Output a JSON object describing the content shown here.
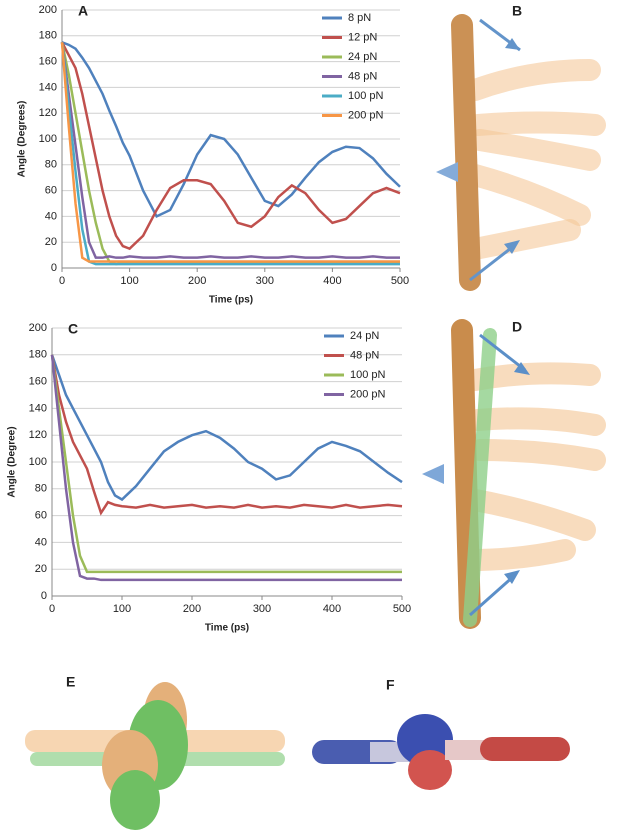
{
  "chart_data": [
    {
      "type": "line",
      "label": "A",
      "xlabel": "Time (ps)",
      "ylabel": "Angle (Degrees)",
      "x": [
        0,
        10,
        20,
        30,
        40,
        50,
        60,
        70,
        80,
        90,
        100,
        120,
        140,
        160,
        180,
        200,
        220,
        240,
        260,
        280,
        300,
        320,
        340,
        360,
        380,
        400,
        420,
        440,
        460,
        480,
        500
      ],
      "xlim": [
        0,
        500
      ],
      "xticks": [
        0,
        100,
        200,
        300,
        400,
        500
      ],
      "ylim": [
        0,
        200
      ],
      "yticks": [
        0,
        20,
        40,
        60,
        80,
        100,
        120,
        140,
        160,
        180,
        200
      ],
      "grid": true,
      "legend": "upper right",
      "series": [
        {
          "name": "8 pN",
          "color": "#4f81bd",
          "values": [
            175,
            173,
            170,
            163,
            155,
            145,
            135,
            122,
            110,
            97,
            87,
            60,
            40,
            45,
            65,
            88,
            103,
            100,
            88,
            70,
            52,
            48,
            57,
            70,
            82,
            90,
            94,
            93,
            85,
            73,
            63
          ]
        },
        {
          "name": "12 pN",
          "color": "#c0504d",
          "values": [
            175,
            165,
            155,
            135,
            110,
            85,
            60,
            40,
            25,
            17,
            15,
            25,
            45,
            62,
            68,
            68,
            65,
            52,
            35,
            32,
            40,
            55,
            64,
            58,
            45,
            35,
            38,
            48,
            58,
            62,
            58
          ]
        },
        {
          "name": "24 pN",
          "color": "#9bbb59",
          "values": [
            175,
            150,
            120,
            90,
            60,
            35,
            15,
            5,
            3,
            4,
            4,
            4,
            4,
            4,
            4,
            4,
            4,
            4,
            4,
            4,
            4,
            4,
            4,
            4,
            4,
            4,
            4,
            4,
            4,
            4,
            4
          ]
        },
        {
          "name": "48 pN",
          "color": "#8064a2",
          "values": [
            175,
            135,
            95,
            55,
            20,
            8,
            8,
            9,
            8,
            8,
            9,
            8,
            8,
            9,
            8,
            8,
            9,
            8,
            8,
            9,
            8,
            8,
            9,
            8,
            8,
            9,
            8,
            8,
            9,
            8,
            8
          ]
        },
        {
          "name": "100 pN",
          "color": "#4bacc6",
          "values": [
            175,
            125,
            75,
            30,
            5,
            3,
            3,
            3,
            3,
            3,
            3,
            3,
            3,
            3,
            3,
            3,
            3,
            3,
            3,
            3,
            3,
            3,
            3,
            3,
            3,
            3,
            3,
            3,
            3,
            3,
            3
          ]
        },
        {
          "name": "200 pN",
          "color": "#f79646",
          "values": [
            175,
            110,
            50,
            8,
            5,
            5,
            5,
            5,
            5,
            5,
            5,
            5,
            5,
            5,
            5,
            5,
            5,
            5,
            5,
            5,
            5,
            5,
            5,
            5,
            5,
            5,
            5,
            5,
            5,
            5,
            5
          ]
        }
      ]
    },
    {
      "type": "line",
      "label": "C",
      "xlabel": "Time (ps)",
      "ylabel": "Angle (Degree)",
      "x": [
        0,
        10,
        20,
        30,
        40,
        50,
        60,
        70,
        80,
        90,
        100,
        120,
        140,
        160,
        180,
        200,
        220,
        240,
        260,
        280,
        300,
        320,
        340,
        360,
        380,
        400,
        420,
        440,
        460,
        480,
        500
      ],
      "xlim": [
        0,
        500
      ],
      "xticks": [
        0,
        100,
        200,
        300,
        400,
        500
      ],
      "ylim": [
        0,
        200
      ],
      "yticks": [
        0,
        20,
        40,
        60,
        80,
        100,
        120,
        140,
        160,
        180,
        200
      ],
      "grid": true,
      "legend": "upper right",
      "series": [
        {
          "name": "24 pN",
          "color": "#4f81bd",
          "values": [
            180,
            165,
            150,
            140,
            130,
            120,
            110,
            100,
            85,
            75,
            72,
            82,
            95,
            108,
            115,
            120,
            123,
            118,
            110,
            100,
            95,
            87,
            90,
            100,
            110,
            115,
            112,
            108,
            100,
            92,
            85
          ]
        },
        {
          "name": "48 pN",
          "color": "#c0504d",
          "values": [
            180,
            150,
            130,
            115,
            105,
            95,
            78,
            62,
            70,
            68,
            67,
            66,
            68,
            66,
            67,
            68,
            66,
            67,
            66,
            68,
            66,
            67,
            66,
            68,
            67,
            66,
            68,
            66,
            67,
            68,
            67
          ]
        },
        {
          "name": "100 pN",
          "color": "#9bbb59",
          "values": [
            180,
            140,
            100,
            60,
            30,
            18,
            18,
            18,
            18,
            18,
            18,
            18,
            18,
            18,
            18,
            18,
            18,
            18,
            18,
            18,
            18,
            18,
            18,
            18,
            18,
            18,
            18,
            18,
            18,
            18,
            18
          ]
        },
        {
          "name": "200 pN",
          "color": "#8064a2",
          "values": [
            180,
            130,
            80,
            40,
            15,
            13,
            13,
            12,
            12,
            12,
            12,
            12,
            12,
            12,
            12,
            12,
            12,
            12,
            12,
            12,
            12,
            12,
            12,
            12,
            12,
            12,
            12,
            12,
            12,
            12,
            12
          ]
        }
      ]
    }
  ],
  "panel_labels": [
    "B",
    "D",
    "E",
    "F"
  ]
}
